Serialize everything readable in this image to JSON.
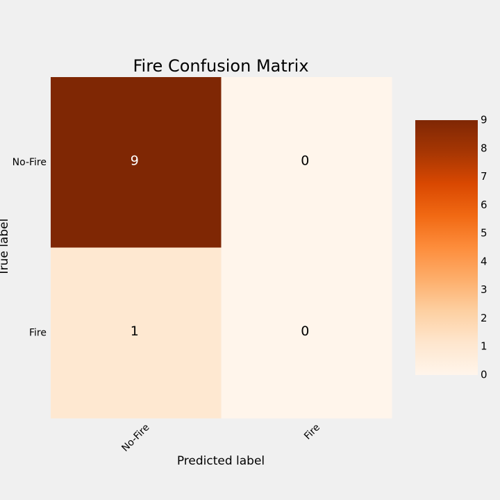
{
  "chart_data": {
    "type": "heatmap",
    "title": "Fire Confusion Matrix",
    "xlabel": "Predicted label",
    "ylabel": "True label",
    "x_categories": [
      "No-Fire",
      "Fire"
    ],
    "y_categories": [
      "No-Fire",
      "Fire"
    ],
    "values": [
      [
        9,
        0
      ],
      [
        1,
        0
      ]
    ],
    "colormap": "Oranges",
    "colorbar": {
      "range": [
        0,
        9
      ],
      "ticks": [
        "0",
        "1",
        "2",
        "3",
        "4",
        "5",
        "6",
        "7",
        "8",
        "9"
      ]
    },
    "grid": false
  }
}
